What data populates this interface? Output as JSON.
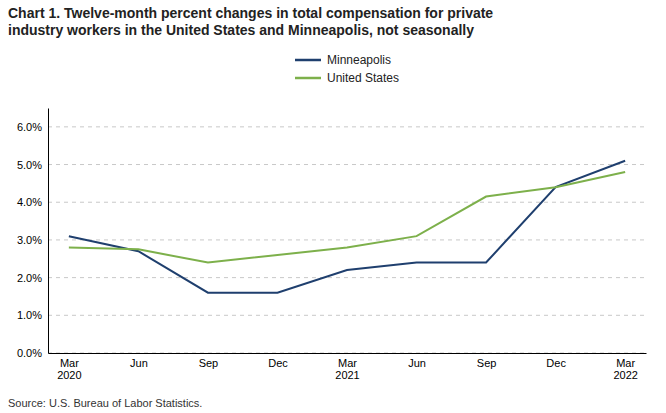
{
  "chart_data": {
    "type": "line",
    "title": "Chart 1. Twelve-month percent changes in total compensation for private\nindustry workers in the United States and Minneapolis, not seasonally",
    "annotations": [
      "Source: U.S. Bureau of Labor Statistics."
    ],
    "categories": [
      "Mar\n2020",
      "Jun",
      "Sep",
      "Dec",
      "Mar\n2021",
      "Jun",
      "Sep",
      "Dec",
      "Mar\n2022"
    ],
    "series": [
      {
        "name": "Minneapolis",
        "color": "#1f3f6e",
        "values": [
          3.1,
          2.7,
          1.6,
          1.6,
          2.2,
          2.4,
          2.4,
          4.4,
          5.1
        ]
      },
      {
        "name": "United States",
        "color": "#7db04b",
        "values": [
          2.8,
          2.75,
          2.4,
          2.6,
          2.8,
          3.1,
          4.15,
          4.4,
          4.8
        ]
      }
    ],
    "ylim": [
      0.0,
      6.5
    ],
    "yticks": [
      {
        "value": 0.0,
        "label": "0.0%"
      },
      {
        "value": 1.0,
        "label": "1.0%"
      },
      {
        "value": 2.0,
        "label": "2.0%"
      },
      {
        "value": 3.0,
        "label": "3.0%"
      },
      {
        "value": 4.0,
        "label": "4.0%"
      },
      {
        "value": 5.0,
        "label": "5.0%"
      },
      {
        "value": 6.0,
        "label": "6.0%"
      }
    ],
    "grid": true,
    "legend": "top"
  }
}
